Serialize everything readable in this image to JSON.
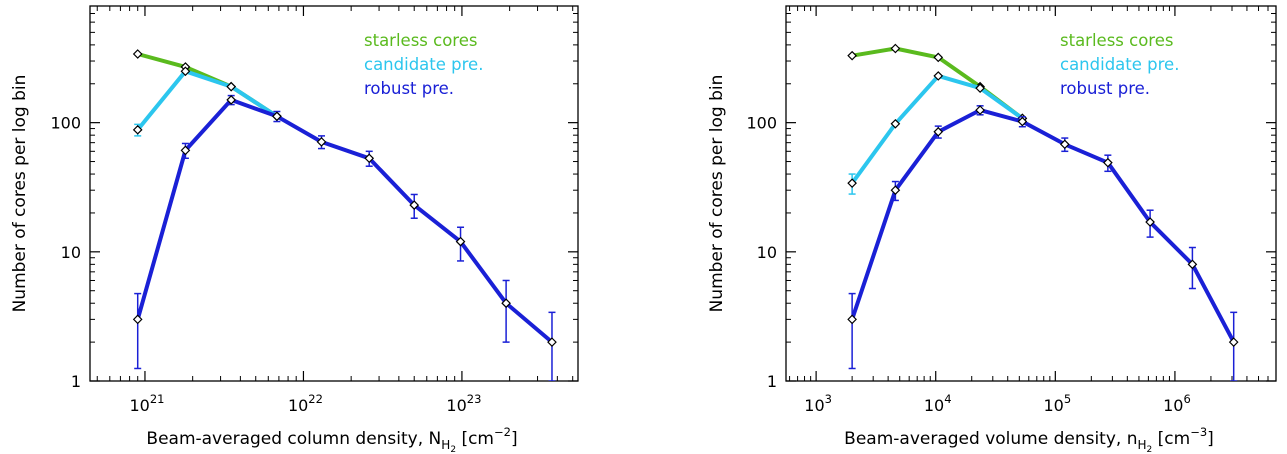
{
  "chart_data": [
    {
      "type": "line",
      "xscale": "log",
      "yscale": "log",
      "xlim": [
        4.5e+20,
        5.4e+23
      ],
      "ylim": [
        1,
        800
      ],
      "xlabel": {
        "pre": "Beam-averaged column density, N",
        "sub": "H",
        "subsub": "2",
        "post": " [cm",
        "sup": "−2",
        "end": "]"
      },
      "ylabel": "Number of cores per log bin",
      "x_ticks": [
        {
          "value": 1e+21,
          "base": "10",
          "exp": "21"
        },
        {
          "value": 1e+22,
          "base": "10",
          "exp": "22"
        },
        {
          "value": 1e+23,
          "base": "10",
          "exp": "23"
        }
      ],
      "y_ticks": [
        {
          "value": 1,
          "label": "1"
        },
        {
          "value": 10,
          "label": "10"
        },
        {
          "value": 100,
          "label": "100"
        }
      ],
      "legend_position": "top-right",
      "series": [
        {
          "name": "starless cores",
          "color": "#5aba1e",
          "x": [
            9e+20,
            1.8e+21,
            3.5e+21,
            6.8e+21
          ],
          "y": [
            340,
            270,
            190,
            112
          ],
          "err": [
            0,
            0,
            0,
            0
          ]
        },
        {
          "name": "candidate pre.",
          "color": "#2cc6ee",
          "x": [
            9e+20,
            1.8e+21,
            3.5e+21,
            6.8e+21
          ],
          "y": [
            88,
            250,
            190,
            112
          ],
          "err": [
            9,
            0,
            0,
            0
          ]
        },
        {
          "name": "robust pre.",
          "color": "#1a20d6",
          "x": [
            9e+20,
            1.8e+21,
            3.5e+21,
            6.8e+21,
            1.3e+22,
            2.6e+22,
            5e+22,
            9.8e+22,
            1.9e+23,
            3.7e+23
          ],
          "y": [
            3,
            61,
            150,
            112,
            71,
            53,
            23,
            12,
            4,
            2
          ],
          "err": [
            1.75,
            8,
            12,
            10,
            8,
            7,
            4.8,
            3.5,
            2,
            1.4
          ]
        }
      ]
    },
    {
      "type": "line",
      "xscale": "log",
      "yscale": "log",
      "xlim": [
        560,
        7000000.0
      ],
      "ylim": [
        1,
        800
      ],
      "xlabel": {
        "pre": "Beam-averaged volume density, n",
        "sub": "H",
        "subsub": "2",
        "post": " [cm",
        "sup": "−3",
        "end": "]"
      },
      "ylabel": "Number of cores per log bin",
      "x_ticks": [
        {
          "value": 1000.0,
          "base": "10",
          "exp": "3"
        },
        {
          "value": 10000.0,
          "base": "10",
          "exp": "4"
        },
        {
          "value": 100000.0,
          "base": "10",
          "exp": "5"
        },
        {
          "value": 1000000.0,
          "base": "10",
          "exp": "6"
        }
      ],
      "y_ticks": [
        {
          "value": 1,
          "label": "1"
        },
        {
          "value": 10,
          "label": "10"
        },
        {
          "value": 100,
          "label": "100"
        }
      ],
      "legend_position": "top-right",
      "series": [
        {
          "name": "starless cores",
          "color": "#5aba1e",
          "x": [
            2000.0,
            4600.0,
            10500.0,
            23500.0,
            53000.0
          ],
          "y": [
            330,
            375,
            320,
            190,
            108
          ],
          "err": [
            0,
            0,
            0,
            0,
            0
          ]
        },
        {
          "name": "candidate pre.",
          "color": "#2cc6ee",
          "x": [
            2000.0,
            4600.0,
            10500.0,
            23500.0,
            53000.0
          ],
          "y": [
            34,
            98,
            230,
            185,
            108
          ],
          "err": [
            6,
            0,
            0,
            0,
            0
          ]
        },
        {
          "name": "robust pre.",
          "color": "#1a20d6",
          "x": [
            2000.0,
            4600.0,
            10500.0,
            23500.0,
            53000.0,
            120000.0,
            275000.0,
            620000.0,
            1400000.0,
            3100000.0
          ],
          "y": [
            3,
            30,
            85,
            125,
            102,
            68,
            49,
            17,
            8,
            2
          ],
          "err": [
            1.75,
            5,
            9,
            10,
            9,
            8,
            7,
            4,
            2.8,
            1.4
          ]
        }
      ]
    }
  ]
}
